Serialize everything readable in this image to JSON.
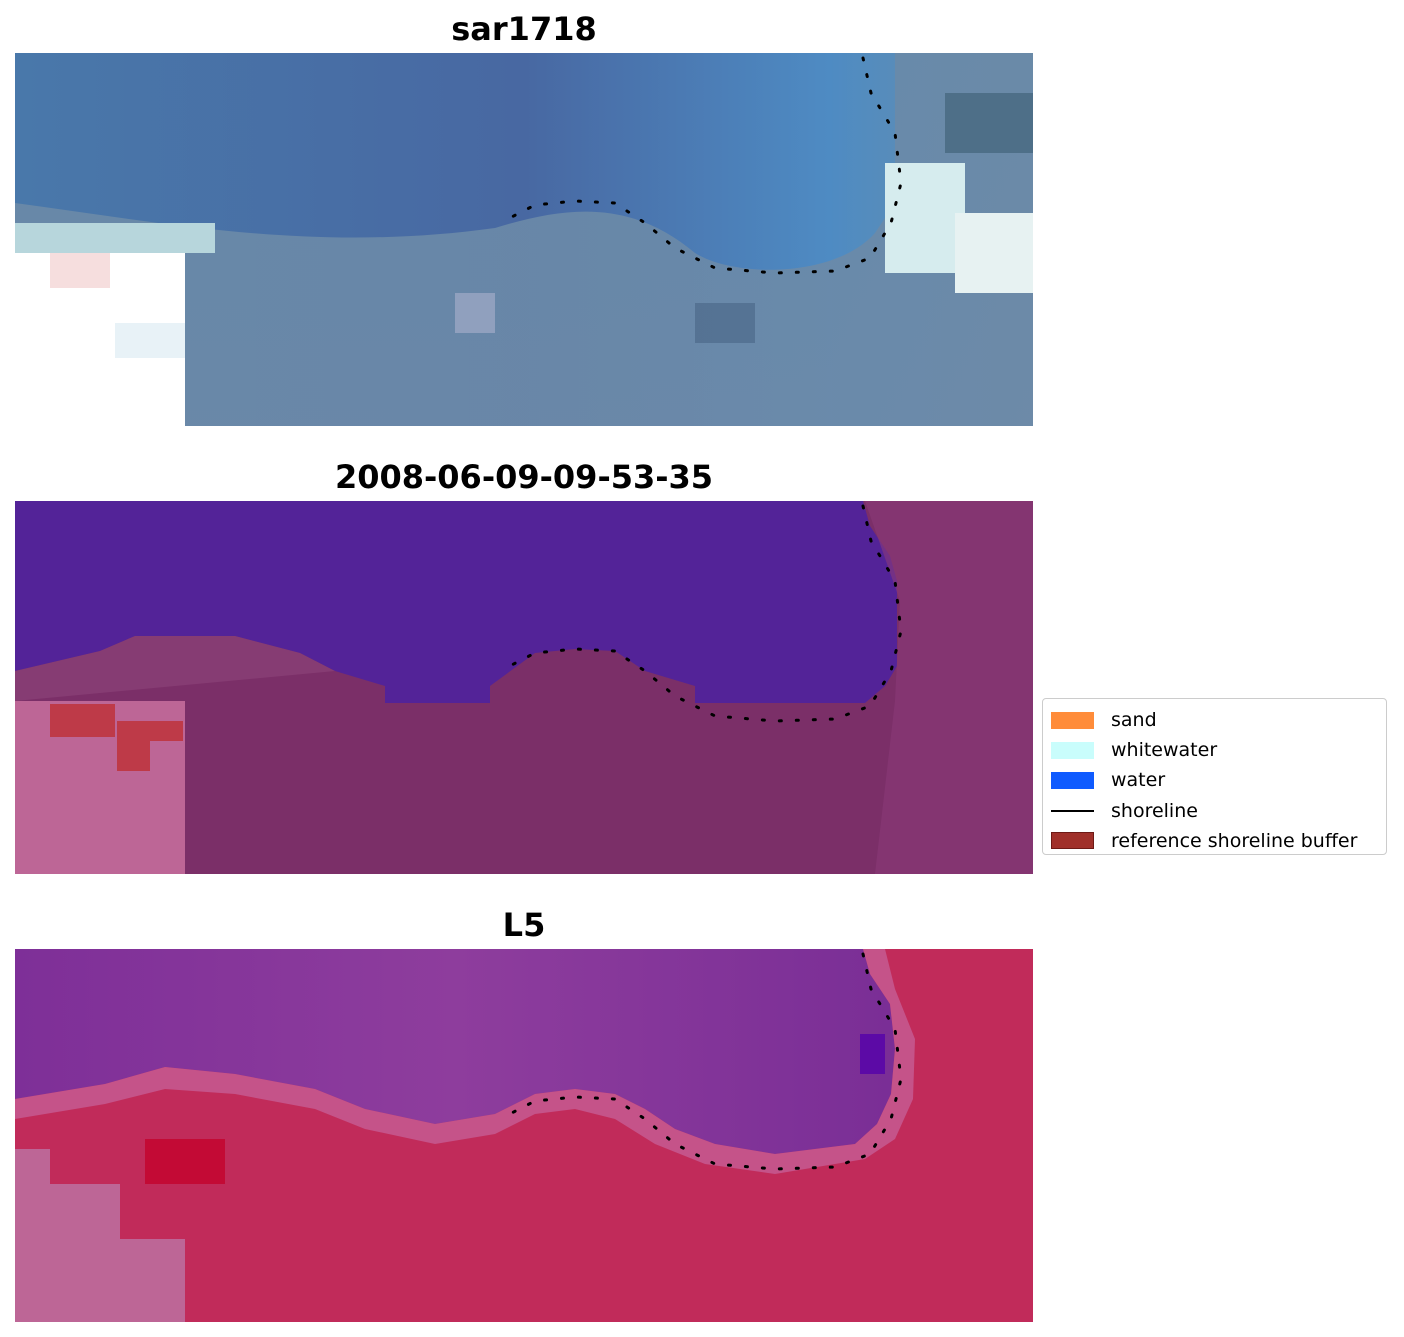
{
  "panels": [
    {
      "id": "rgb",
      "title": "sar1718"
    },
    {
      "id": "classification",
      "title": "2008-06-09-09-53-35"
    },
    {
      "id": "index",
      "title": "L5"
    }
  ],
  "legend": {
    "items": [
      {
        "label": "sand",
        "kind": "patch",
        "color": "#ff8c3a"
      },
      {
        "label": "whitewater",
        "kind": "patch",
        "color": "#c9fdfc"
      },
      {
        "label": "water",
        "kind": "patch",
        "color": "#0f5bff"
      },
      {
        "label": "shoreline",
        "kind": "line",
        "color": "#000000"
      },
      {
        "label": "reference shoreline buffer",
        "kind": "patch",
        "color": "#a0302a",
        "edge": "#6e1a16"
      }
    ]
  },
  "colors": {
    "rgb_water": "#4a74a8",
    "rgb_shallow": "#5b8fbf",
    "rgb_land": "#7f97b0",
    "rgb_whitewater": "#dfeff0",
    "class_water": "#532398",
    "class_land": "#7b2f68",
    "class_nodata": "#bd6696",
    "class_buffer": "#be3a48",
    "index_water": "#8a3d9a",
    "index_land": "#c12b5a",
    "index_nodata": "#bd6696",
    "shoreline": "#000000"
  }
}
